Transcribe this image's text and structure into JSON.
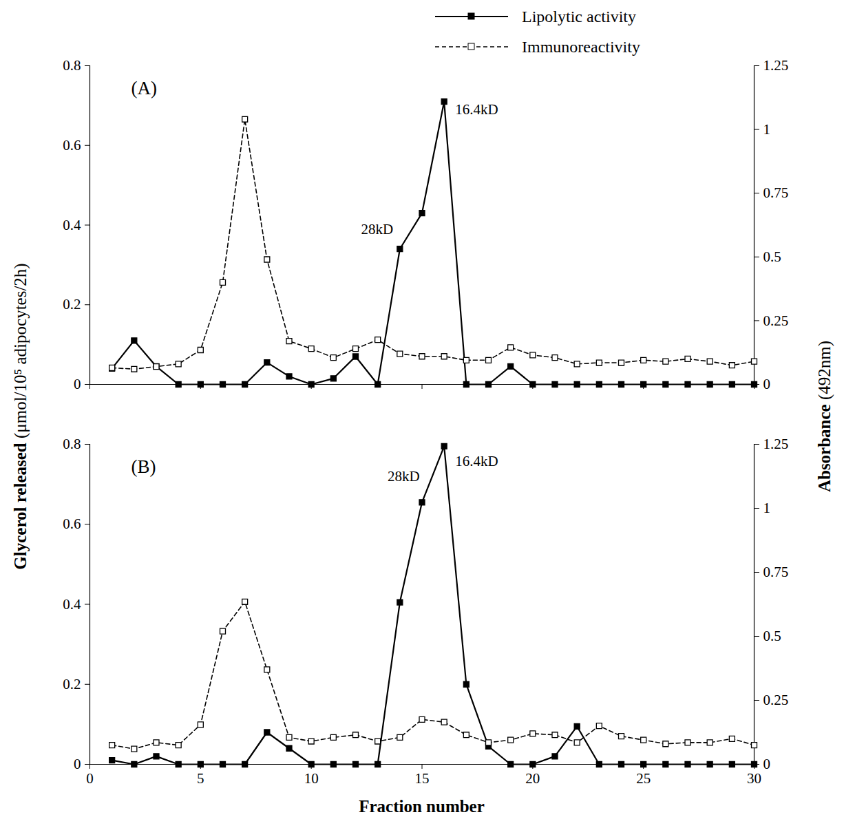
{
  "chart_data": [
    {
      "type": "line",
      "title": "(A)",
      "legend": "top right",
      "tick_labels": "y",
      "x": [
        1,
        2,
        3,
        4,
        5,
        6,
        7,
        8,
        9,
        10,
        11,
        12,
        13,
        14,
        15,
        16,
        17,
        18,
        19,
        20,
        21,
        22,
        23,
        24,
        25,
        26,
        27,
        28,
        29,
        30
      ],
      "xlim": [
        0,
        30
      ],
      "xticks": [
        0,
        5,
        10,
        15,
        20,
        25,
        30
      ],
      "ylim": [
        0,
        0.8
      ],
      "yticks": [
        0,
        0.2,
        0.4,
        0.6,
        0.8
      ],
      "y2lim": [
        0,
        1.25
      ],
      "y2ticks": [
        0,
        0.25,
        0.5,
        0.75,
        1,
        1.25
      ],
      "series": [
        {
          "name": "Lipolytic activity",
          "color": "#000000",
          "marker": "square",
          "line_style": "solid",
          "values": [
            0.04,
            0.11,
            0.045,
            0,
            0,
            0,
            0,
            0.055,
            0.02,
            0,
            0.015,
            0.07,
            0,
            0.34,
            0.43,
            0.71,
            0,
            0,
            0.045,
            0,
            0,
            0,
            0,
            0,
            0,
            0,
            0,
            0,
            0,
            0
          ]
        },
        {
          "name": "Immunoreactivity",
          "color": "#000000",
          "marker": "open-square",
          "line_style": "dashed",
          "axis": "y2",
          "values": [
            0.065,
            0.06,
            0.07,
            0.08,
            0.135,
            0.4,
            1.04,
            0.49,
            0.17,
            0.14,
            0.105,
            0.14,
            0.175,
            0.12,
            0.11,
            0.11,
            0.095,
            0.095,
            0.145,
            0.115,
            0.105,
            0.08,
            0.085,
            0.085,
            0.095,
            0.09,
            0.1,
            0.09,
            0.075,
            0.09
          ]
        }
      ],
      "annotations": [
        {
          "text": "28kD",
          "x": 13.7,
          "y": 0.39
        },
        {
          "text": "16.4kD",
          "x": 16.5,
          "y": 0.69
        }
      ]
    },
    {
      "type": "line",
      "title": "(B)",
      "x_label": "Fraction number",
      "y_label": "Glycerol released (μmol/10⁵ adipocytes/2h)",
      "y2_label": "Absorbance (492nm)",
      "x": [
        1,
        2,
        3,
        4,
        5,
        6,
        7,
        8,
        9,
        10,
        11,
        12,
        13,
        14,
        15,
        16,
        17,
        18,
        19,
        20,
        21,
        22,
        23,
        24,
        25,
        26,
        27,
        28,
        29,
        30
      ],
      "xlim": [
        0,
        30
      ],
      "xticks": [
        0,
        5,
        10,
        15,
        20,
        25,
        30
      ],
      "ylim": [
        0,
        0.8
      ],
      "yticks": [
        0,
        0.2,
        0.4,
        0.6,
        0.8
      ],
      "y2lim": [
        0,
        1.25
      ],
      "y2ticks": [
        0,
        0.25,
        0.5,
        0.75,
        1,
        1.25
      ],
      "series": [
        {
          "name": "Lipolytic activity",
          "color": "#000000",
          "marker": "square",
          "line_style": "solid",
          "values": [
            0.01,
            0,
            0.02,
            0,
            0,
            0,
            0,
            0.08,
            0.04,
            0,
            0,
            0,
            0,
            0.405,
            0.655,
            0.795,
            0.2,
            0.045,
            0,
            0,
            0.02,
            0.095,
            0,
            0,
            0,
            0,
            0,
            0,
            0,
            0
          ]
        },
        {
          "name": "Immunoreactivity",
          "color": "#000000",
          "marker": "open-square",
          "line_style": "dashed",
          "axis": "y2",
          "values": [
            0.075,
            0.06,
            0.085,
            0.075,
            0.155,
            0.52,
            0.635,
            0.37,
            0.105,
            0.09,
            0.105,
            0.115,
            0.09,
            0.105,
            0.175,
            0.165,
            0.115,
            0.085,
            0.095,
            0.12,
            0.115,
            0.085,
            0.15,
            0.11,
            0.095,
            0.08,
            0.085,
            0.085,
            0.1,
            0.075
          ]
        }
      ],
      "annotations": [
        {
          "text": "28kD",
          "x": 14.9,
          "y": 0.72
        },
        {
          "text": "16.4kD",
          "x": 16.5,
          "y": 0.757
        }
      ]
    }
  ]
}
